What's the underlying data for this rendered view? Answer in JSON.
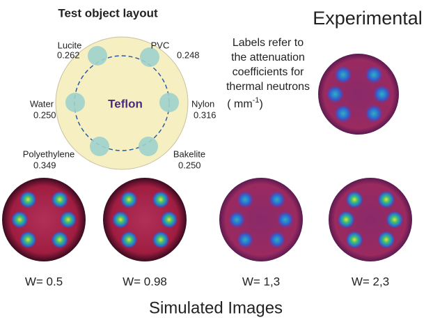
{
  "header": {
    "title": "Test object layout",
    "experimental": "Experimental"
  },
  "object": {
    "center": "Teflon",
    "materials": [
      {
        "name": "Lucite",
        "value": "0.262"
      },
      {
        "name": "PVC",
        "value": "0.248"
      },
      {
        "name": "Water",
        "value": "0.250"
      },
      {
        "name": "Nylon",
        "value": "0.316"
      },
      {
        "name": "Polyethylene",
        "value": "0.349"
      },
      {
        "name": "Bakelite",
        "value": "0.250"
      }
    ]
  },
  "note": {
    "lines": [
      "Labels refer to",
      "the attenuation",
      "coefficients for",
      "thermal neutrons"
    ],
    "unit_open": "( mm",
    "unit_exp": "-1",
    "unit_close": ")"
  },
  "simulated": {
    "labels": [
      "W= 0.5",
      "W= 0.98",
      "W= 1,3",
      "W= 2,3"
    ],
    "title": "Simulated Images"
  }
}
